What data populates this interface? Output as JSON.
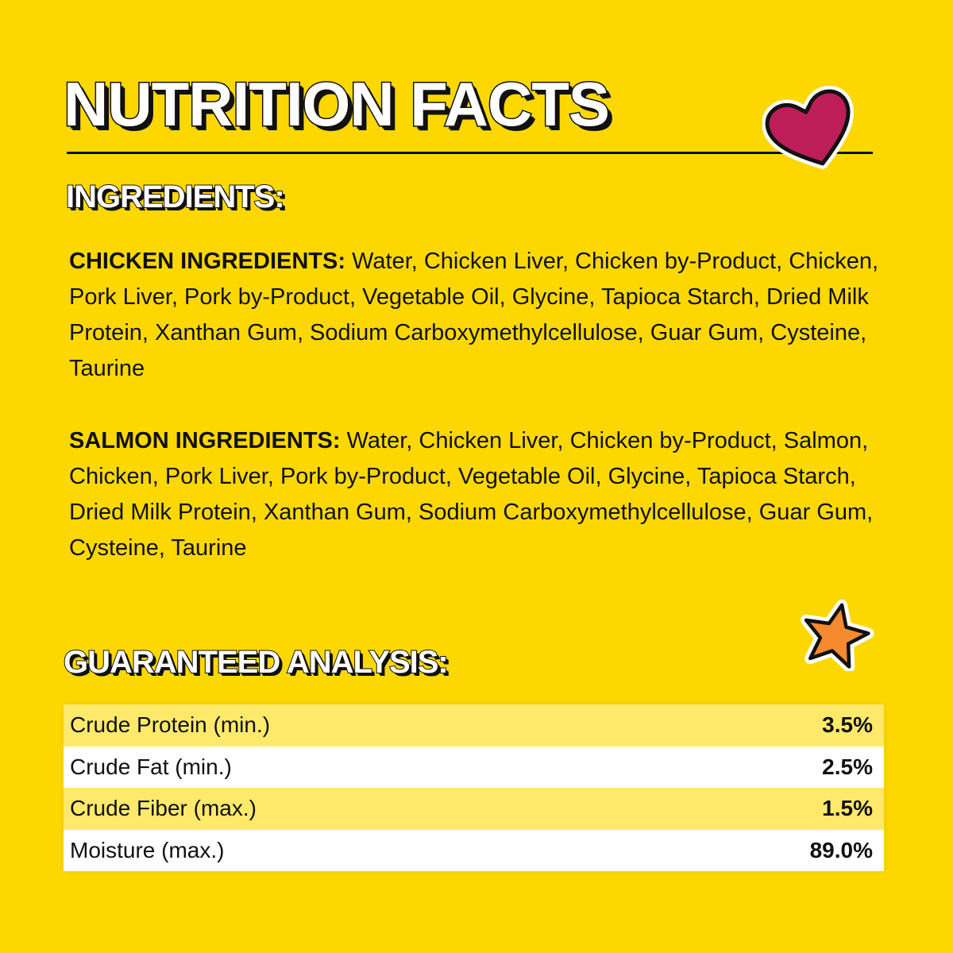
{
  "title": "NUTRITION FACTS",
  "ingredients_heading": "INGREDIENTS:",
  "chicken": {
    "label": "CHICKEN INGREDIENTS:",
    "text": "Water, Chicken Liver, Chicken by-Product, Chicken, Pork Liver, Pork by-Product, Vegetable Oil, Glycine, Tapioca Starch, Dried Milk Protein, Xanthan Gum, Sodium Carboxymethylcellulose, Guar Gum, Cysteine, Taurine"
  },
  "salmon": {
    "label": "SALMON INGREDIENTS:",
    "text": "Water, Chicken Liver, Chicken by-Product, Salmon, Chicken, Pork Liver, Pork by-Product, Vegetable Oil, Glycine, Tapioca Starch, Dried Milk Protein, Xanthan Gum, Sodium Carboxymethylcellulose, Guar Gum, Cysteine, Taurine"
  },
  "analysis_heading": "GUARANTEED ANALYSIS:",
  "analysis": [
    {
      "name": "Crude Protein (min.)",
      "value": "3.5%"
    },
    {
      "name": "Crude Fat (min.)",
      "value": "2.5%"
    },
    {
      "name": "Crude Fiber (max.)",
      "value": "1.5%"
    },
    {
      "name": "Moisture (max.)",
      "value": "89.0%"
    }
  ],
  "colors": {
    "background": "#FDD800",
    "heart": "#BE1E57",
    "star": "#F7892E",
    "row_highlight": "#FFE96B"
  },
  "icons": [
    "heart-icon",
    "star-icon"
  ]
}
